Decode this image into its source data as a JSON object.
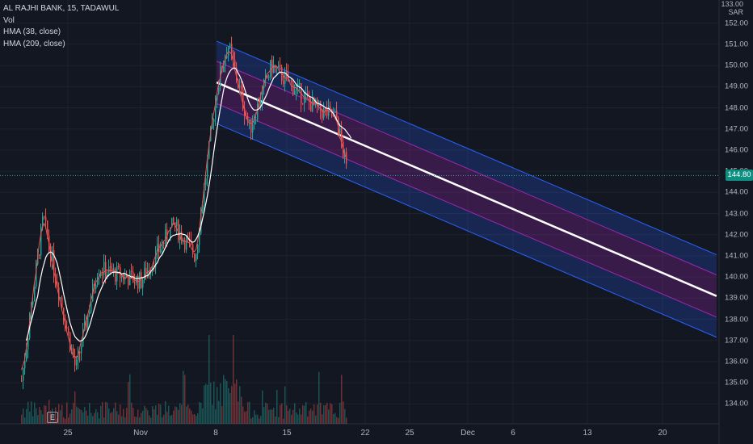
{
  "legend": {
    "symbol": "AL RAJHI BANK, 15, TADAWUL",
    "volume": "Vol",
    "hma1": "HMA (38, close)",
    "hma2": "HMA (209, close)"
  },
  "currency_top": "133.00",
  "currency": "SAR",
  "last_price_label": "144.80",
  "logo_letter": "E",
  "colors": {
    "background": "#131722",
    "up": "#26a69a",
    "down": "#ef5350",
    "hma_fast": "#ef5350",
    "hma_slow": "#ffffff",
    "channel_outer_fill": "#2962ff",
    "channel_inner_fill": "#9c27b0",
    "channel_border": "#2962ff",
    "channel_inner_border": "#9c27b0",
    "price_line": "#26a69a"
  },
  "chart_data": {
    "type": "candlestick",
    "y_axis": {
      "ticks": [
        "152.00",
        "151.00",
        "150.00",
        "149.00",
        "148.00",
        "147.00",
        "146.00",
        "145.00",
        "144.00",
        "143.00",
        "142.00",
        "141.00",
        "140.00",
        "139.00",
        "138.00",
        "137.00",
        "136.00",
        "135.00",
        "134.00"
      ],
      "range": [
        133.5,
        153.0
      ]
    },
    "x_axis": {
      "ticks": [
        "25",
        "Nov",
        "8",
        "15",
        "22",
        "25",
        "Dec",
        "6",
        "13",
        "20"
      ]
    },
    "last_price": 144.8,
    "key_points": [
      {
        "x": "Oct 21",
        "y": 135.1
      },
      {
        "x": "Oct 23",
        "y": 142.8
      },
      {
        "x": "Oct 26",
        "y": 135.6
      },
      {
        "x": "Oct 28",
        "y": 140.4
      },
      {
        "x": "Nov 1",
        "y": 139.8
      },
      {
        "x": "Nov 4",
        "y": 142.5
      },
      {
        "x": "Nov 6",
        "y": 141.0
      },
      {
        "x": "Nov 8",
        "y": 149.0
      },
      {
        "x": "Nov 9",
        "y": 151.0
      },
      {
        "x": "Nov 11",
        "y": 147.0
      },
      {
        "x": "Nov 13",
        "y": 150.0
      },
      {
        "x": "Nov 17",
        "y": 148.0
      },
      {
        "x": "Nov 19",
        "y": 147.5
      },
      {
        "x": "Nov 20",
        "y": 144.8
      }
    ],
    "regression_channel": {
      "start": {
        "x": "Nov 8",
        "y": 149.2
      },
      "end": {
        "x": "Dec 24",
        "y": 139.1
      },
      "upper_offset": 1.95,
      "inner_offset": 1.0,
      "lower_offset": -1.95
    },
    "volume": "relative bars, peak near Nov 9"
  }
}
